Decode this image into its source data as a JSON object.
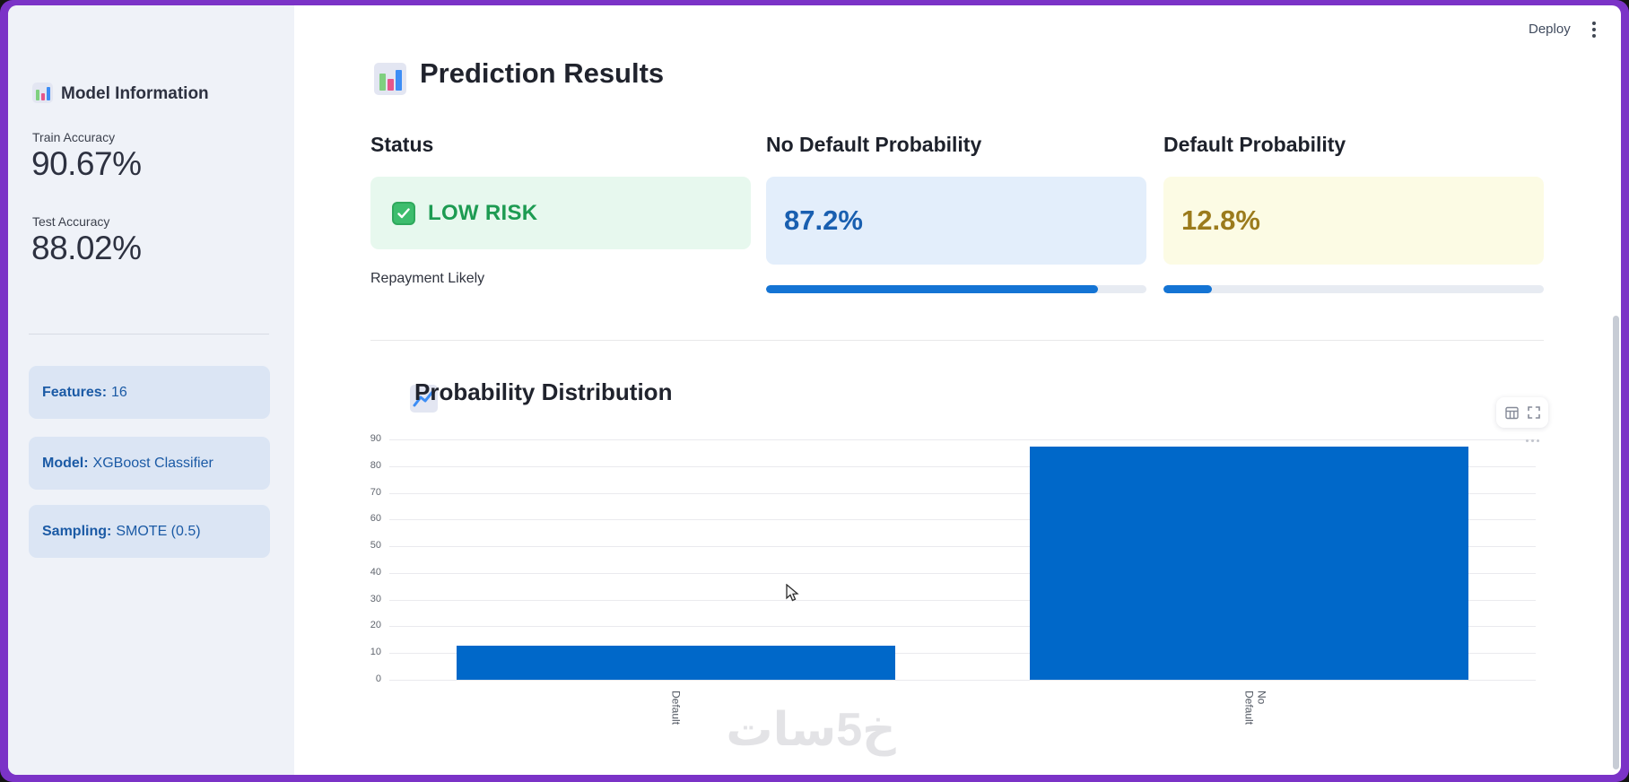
{
  "header": {
    "deploy_label": "Deploy"
  },
  "sidebar": {
    "title": "Model Information",
    "title_icon": "bar-chart-icon",
    "metrics": [
      {
        "label": "Train Accuracy",
        "value": "90.67%"
      },
      {
        "label": "Test Accuracy",
        "value": "88.02%"
      }
    ],
    "info_boxes": [
      {
        "label": "Features:",
        "value": "16"
      },
      {
        "label": "Model:",
        "value": "XGBoost Classifier"
      },
      {
        "label": "Sampling:",
        "value": "SMOTE (0.5)"
      }
    ]
  },
  "main": {
    "title": "Prediction Results",
    "title_icon": "bar-chart-icon",
    "results": {
      "status": {
        "heading": "Status",
        "icon": "check-mark-icon",
        "label": "LOW RISK",
        "caption": "Repayment Likely"
      },
      "no_default": {
        "heading": "No Default Probability",
        "value": "87.2%",
        "progress_pct": 87.2
      },
      "default": {
        "heading": "Default Probability",
        "value": "12.8%",
        "progress_pct": 12.8
      }
    },
    "section_title": "Probability Distribution",
    "section_icon": "chart-increasing-icon"
  },
  "chart_data": {
    "type": "bar",
    "categories": [
      "Default",
      "No Default"
    ],
    "values": [
      12.8,
      87.2
    ],
    "title": "Probability Distribution",
    "xlabel": "",
    "ylabel": "",
    "ylim": [
      0,
      90
    ],
    "yticks": [
      0,
      10,
      20,
      30,
      40,
      50,
      60,
      70,
      80,
      90
    ],
    "grid": true,
    "legend": "none",
    "bar_color": "#0068c9"
  },
  "chart_toolbar": {
    "icons": [
      "table-view-icon",
      "fullscreen-icon"
    ],
    "more_icon": "ellipsis-icon"
  },
  "watermark": "خ5سات",
  "colors": {
    "frame_purple": "#7b33c7",
    "sidebar_bg": "#eff2f8",
    "info_box_bg": "#dbe5f4",
    "info_text_blue": "#1b5aa5",
    "status_green_bg": "#e7f8ee",
    "status_green_text": "#1d9b52",
    "value_blue_bg": "#e3eefb",
    "value_blue_text": "#195fb0",
    "value_yellow_bg": "#fcfbe4",
    "value_yellow_text": "#9b7b1c",
    "progress_blue": "#1474d4",
    "chart_bar_blue": "#0068c9"
  }
}
